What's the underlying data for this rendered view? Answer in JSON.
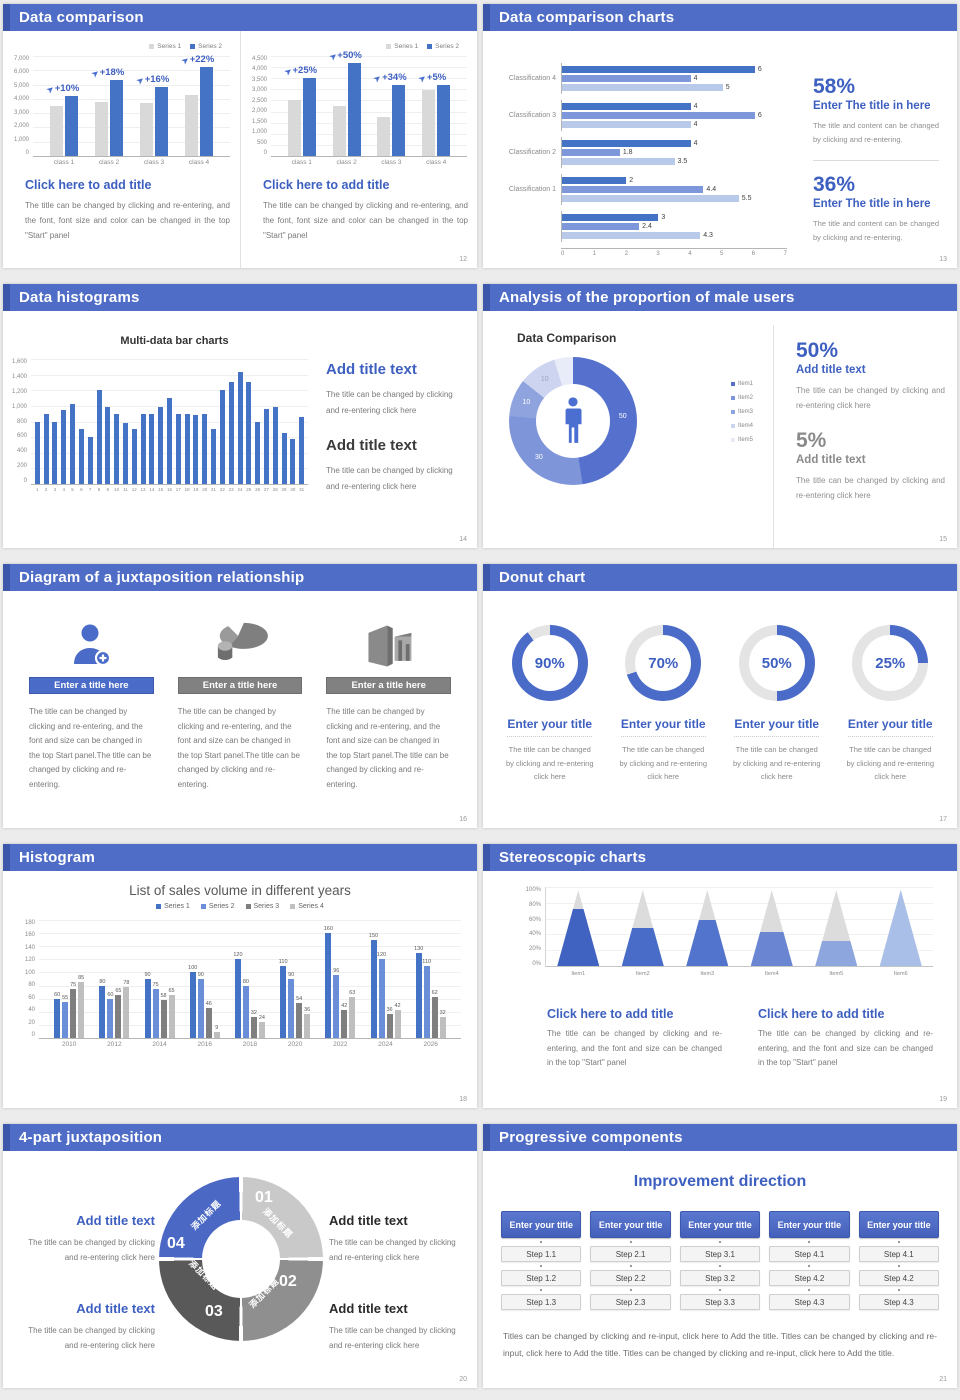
{
  "theme": {
    "background": "#ececec",
    "slide_bg": "#ffffff",
    "header_blue": "#4f6cc6",
    "header_edge_blue": "#3d58ab",
    "accent_blue": "#3d5fc0",
    "chart_blue": "#4472c4",
    "bar_gray": "#d9d9d9"
  },
  "slides": {
    "s12": {
      "title": "Data comparison",
      "page": "12",
      "legend": [
        "Series 1",
        "Series 2"
      ],
      "panels": [
        {
          "y_ticks": [
            "7,000",
            "6,000",
            "5,000",
            "4,000",
            "3,000",
            "2,000",
            "1,000",
            "0"
          ],
          "y_max": 7000,
          "categories": [
            "class 1",
            "class 2",
            "class 3",
            "class 4"
          ],
          "series1": [
            3500,
            3800,
            3700,
            4300
          ],
          "series2": [
            4200,
            5300,
            4800,
            6200
          ],
          "pct_labels": [
            "+10%",
            "+18%",
            "+16%",
            "+22%"
          ],
          "block_title": "Click here to add title",
          "block_body": "The title can be changed by clicking and re-entering, and the font, font size and color can be changed in the top \"Start\" panel"
        },
        {
          "y_ticks": [
            "4,500",
            "4,000",
            "3,500",
            "3,000",
            "2,500",
            "2,000",
            "1,500",
            "1,000",
            "500",
            "0"
          ],
          "y_max": 4500,
          "categories": [
            "class 1",
            "class 2",
            "class 3",
            "class 4"
          ],
          "series1": [
            2500,
            2250,
            1750,
            2950
          ],
          "series2": [
            3500,
            4200,
            3200,
            3200
          ],
          "pct_labels": [
            "+25%",
            "+50%",
            "+34%",
            "+5%"
          ],
          "block_title": "Click here to add title",
          "block_body": "The title can be changed by clicking and re-entering, and the font, font size and color can be changed in the top \"Start\" panel"
        }
      ]
    },
    "s13": {
      "title": "Data comparison charts",
      "page": "13",
      "chart": {
        "type": "horizontal-bar",
        "x_max": 7,
        "x_ticks": [
          "0",
          "1",
          "2",
          "3",
          "4",
          "5",
          "6",
          "7"
        ],
        "colors": [
          "#4472c4",
          "#7e97db",
          "#b9c9ea"
        ],
        "legend": [
          "class 3",
          "class 2",
          "class 1"
        ],
        "groups": [
          {
            "label": "Classification 4",
            "values": [
              6,
              4,
              5
            ]
          },
          {
            "label": "Classification 3",
            "values": [
              4,
              6,
              4
            ]
          },
          {
            "label": "Classification 2",
            "values": [
              4,
              1.8,
              3.5
            ]
          },
          {
            "label": "Classification 1",
            "values": [
              2,
              4.4,
              5.5
            ]
          },
          {
            "label": "",
            "values": [
              3,
              2.4,
              4.3
            ]
          }
        ]
      },
      "stats": [
        {
          "value": "58%",
          "title": "Enter The title in here",
          "body": "The title and content can be changed by clicking and re-entering."
        },
        {
          "value": "36%",
          "title": "Enter The title in here",
          "body": "The title and content can be changed by clicking and re-entering."
        }
      ]
    },
    "s14": {
      "title": "Data histograms",
      "page": "14",
      "chart": {
        "type": "bar",
        "chart_title": "Multi-data bar charts",
        "y_ticks": [
          "1,600",
          "1,400",
          "1,200",
          "1,000",
          "800",
          "600",
          "400",
          "200",
          "0"
        ],
        "y_max": 1600,
        "x_labels": [
          "1",
          "2",
          "3",
          "4",
          "5",
          "6",
          "7",
          "8",
          "9",
          "10",
          "11",
          "12",
          "13",
          "14",
          "15",
          "16",
          "17",
          "18",
          "19",
          "20",
          "21",
          "22",
          "23",
          "24",
          "25",
          "26",
          "27",
          "28",
          "29",
          "30",
          "31"
        ],
        "values": [
          800,
          900,
          800,
          950,
          1020,
          700,
          600,
          1200,
          980,
          890,
          780,
          700,
          890,
          900,
          990,
          1100,
          900,
          900,
          880,
          900,
          700,
          1200,
          1300,
          1430,
          1300,
          800,
          960,
          980,
          650,
          580,
          860
        ],
        "bar_color": "#4472c4"
      },
      "blocks": [
        {
          "title": "Add title text",
          "body": "The title can be changed by clicking and re-entering click here"
        },
        {
          "title": "Add title text",
          "body": "The title can be changed by clicking and re-entering click here"
        }
      ]
    },
    "s15": {
      "title": "Analysis of the proportion of male users",
      "page": "15",
      "chart": {
        "type": "pie",
        "chart_title": "Data Comparison",
        "values": [
          50,
          30,
          10,
          10,
          5
        ],
        "slice_labels": [
          "50",
          "30",
          "10",
          "10",
          ""
        ],
        "colors": [
          "#5571cd",
          "#7e95da",
          "#8fa3de",
          "#ccd4f0",
          "#e8ebf8"
        ],
        "legend": [
          "Item1",
          "Item2",
          "Item3",
          "Item4",
          "Item5"
        ]
      },
      "stats": [
        {
          "value": "50%",
          "title": "Add title text",
          "body": "The title can be changed by clicking and re-entering click here"
        },
        {
          "value": "5%",
          "title": "Add title text",
          "body": "The title can be changed by clicking and re-entering click here"
        }
      ]
    },
    "s16": {
      "title": "Diagram of a juxtaposition relationship",
      "page": "16",
      "columns": [
        {
          "icon": "person-add-icon",
          "bar_label": "Enter a title here",
          "body": "The title can be changed by clicking and re-entering, and the font and size can be changed in the top Start panel.The title can be changed by clicking and re-entering."
        },
        {
          "icon": "pie-3d-icon",
          "bar_label": "Enter a title here",
          "body": "The title can be changed by clicking and re-entering, and the font and size can be changed in the top Start panel.The title can be changed by clicking and re-entering."
        },
        {
          "icon": "building-icon",
          "bar_label": "Enter a title here",
          "body": "The title can be changed by clicking and re-entering, and the font and size can be changed in the top Start panel.The title can be changed by clicking and re-entering."
        }
      ]
    },
    "s17": {
      "title": "Donut chart",
      "page": "17",
      "ring_color": "#4a6bc8",
      "track_color": "#e4e4e4",
      "donuts": [
        {
          "pct": 90,
          "label": "90%",
          "title": "Enter your title",
          "body": "The title can be changed by clicking and re-entering click here"
        },
        {
          "pct": 70,
          "label": "70%",
          "title": "Enter your title",
          "body": "The title can be changed by clicking and re-entering click here"
        },
        {
          "pct": 50,
          "label": "50%",
          "title": "Enter your title",
          "body": "The title can be changed by clicking and re-entering click here"
        },
        {
          "pct": 25,
          "label": "25%",
          "title": "Enter your title",
          "body": "The title can be changed by clicking and re-entering click here"
        }
      ]
    },
    "s18": {
      "title": "Histogram",
      "page": "18",
      "chart": {
        "type": "bar",
        "chart_title": "List of sales volume in different years",
        "legend": [
          "Series 1",
          "Series 2",
          "Series 3",
          "Series 4"
        ],
        "colors": [
          "#4472c4",
          "#6b8ed9",
          "#7f7f7f",
          "#bfbfbf"
        ],
        "y_ticks": [
          "180",
          "160",
          "140",
          "120",
          "100",
          "80",
          "60",
          "40",
          "20",
          "0"
        ],
        "y_max": 180,
        "categories": [
          "2010",
          "2012",
          "2014",
          "2016",
          "2018",
          "2020",
          "2022",
          "2024",
          "2026"
        ],
        "series": [
          {
            "name": "Series 1",
            "values": [
              60,
              80,
              90,
              100,
              120,
              110,
              160,
              150,
              130
            ]
          },
          {
            "name": "Series 2",
            "values": [
              55,
              60,
              75,
              90,
              80,
              90,
              96,
              120,
              110
            ]
          },
          {
            "name": "Series 3",
            "values": [
              75,
              65,
              58,
              46,
              32,
              54,
              42,
              36,
              62
            ]
          },
          {
            "name": "Series 4",
            "values": [
              85,
              78,
              65,
              9,
              24,
              36,
              63,
              42,
              32
            ]
          }
        ]
      }
    },
    "s19": {
      "title": "Stereoscopic charts",
      "page": "19",
      "chart": {
        "type": "cone",
        "y_ticks": [
          "100%",
          "80%",
          "60%",
          "40%",
          "20%",
          "0%"
        ],
        "items": [
          {
            "label": "Item1",
            "pct": 75,
            "color": "#4063c2"
          },
          {
            "label": "Item2",
            "pct": 50,
            "color": "#486cc8"
          },
          {
            "label": "Item3",
            "pct": 60,
            "color": "#5274cc"
          },
          {
            "label": "Item4",
            "pct": 45,
            "color": "#6a86d2"
          },
          {
            "label": "Item5",
            "pct": 33,
            "color": "#8ea6de"
          },
          {
            "label": "Item6",
            "pct": 100,
            "color": "#aabfe8"
          }
        ]
      },
      "blocks": [
        {
          "title": "Click here to add title",
          "body": "The title can be changed by clicking and re-entering, and the font and size can be changed in the top \"Start\" panel"
        },
        {
          "title": "Click here to add title",
          "body": "The title can be changed by clicking and re-entering, and the font and size can be changed in the top \"Start\" panel"
        }
      ]
    },
    "s20": {
      "title": "4-part juxtaposition",
      "page": "20",
      "ring": {
        "segments": [
          {
            "num": "01",
            "label": "添加标题",
            "color": "#c9c9c9"
          },
          {
            "num": "02",
            "label": "添加标题",
            "color": "#8f8f8f"
          },
          {
            "num": "03",
            "label": "添加标题",
            "color": "#595959"
          },
          {
            "num": "04",
            "label": "添加标题",
            "color": "#4a68c4"
          }
        ]
      },
      "blocks_left": [
        {
          "title": "Add title text",
          "body": "The title can be changed by clicking and re-entering click here"
        },
        {
          "title": "Add title text",
          "body": "The title can be changed by clicking and re-entering click here"
        }
      ],
      "blocks_right": [
        {
          "title": "Add title text",
          "body": "The title can be changed by clicking and re-entering click here"
        },
        {
          "title": "Add title text",
          "body": "The title can be changed by clicking and re-entering click here"
        }
      ]
    },
    "s21": {
      "title": "Progressive components",
      "page": "21",
      "heading": "Improvement direction",
      "columns": [
        {
          "header": "Enter your title",
          "steps": [
            "Step 1.1",
            "Step 1.2",
            "Step 1.3"
          ]
        },
        {
          "header": "Enter your title",
          "steps": [
            "Step 2.1",
            "Step 2.2",
            "Step 2.3"
          ]
        },
        {
          "header": "Enter your title",
          "steps": [
            "Step 3.1",
            "Step 3.2",
            "Step 3.3"
          ]
        },
        {
          "header": "Enter your title",
          "steps": [
            "Step 4.1",
            "Step 4.2",
            "Step 4.3"
          ]
        },
        {
          "header": "Enter your title",
          "steps": [
            "Step 4.1",
            "Step 4.2",
            "Step 4.3"
          ]
        }
      ],
      "footer": "Titles can be changed by clicking and re-input, click here to Add the title. Titles can be changed by clicking and re-input, click here to Add the title. Titles can be changed by clicking and re-input, click here to Add the title."
    }
  }
}
